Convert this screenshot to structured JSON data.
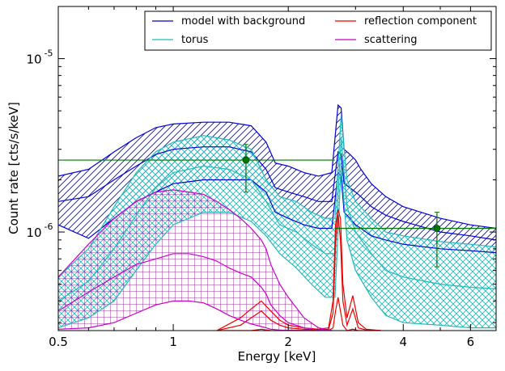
{
  "chart_data": {
    "type": "line",
    "xlabel": "Energy [keV]",
    "ylabel": "Count rate [cts/s/keV]",
    "xscale": "log",
    "yscale": "log",
    "xlim": [
      0.5,
      7.0
    ],
    "ylim": [
      2.7e-07,
      2e-05
    ],
    "x_ticks": [
      {
        "value": 0.5,
        "label": "0.5"
      },
      {
        "value": 1,
        "label": "1"
      },
      {
        "value": 2,
        "label": "2"
      },
      {
        "value": 4,
        "label": "4"
      },
      {
        "value": 6,
        "label": "6"
      }
    ],
    "y_ticks": [
      {
        "value": 1e-06,
        "label": "10",
        "exp": "-6"
      },
      {
        "value": 1e-05,
        "label": "10",
        "exp": "-5"
      }
    ],
    "legend_position": "top-right",
    "series": [
      {
        "name": "model with background",
        "color": "#0000dd",
        "hatch": "diagonal",
        "x": [
          0.5,
          0.6,
          0.7,
          0.8,
          0.9,
          1.0,
          1.2,
          1.4,
          1.6,
          1.75,
          1.85,
          2.0,
          2.2,
          2.4,
          2.6,
          2.7,
          2.75,
          2.8,
          2.9,
          3.0,
          3.1,
          3.3,
          3.6,
          4.0,
          5.0,
          6.0,
          7.0
        ],
        "upper": [
          2.1e-06,
          2.3e-06,
          2.9e-06,
          3.5e-06,
          4e-06,
          4.2e-06,
          4.3e-06,
          4.3e-06,
          4.1e-06,
          3.3e-06,
          2.5e-06,
          2.4e-06,
          2.2e-06,
          2.1e-06,
          2.2e-06,
          5.4e-06,
          5.2e-06,
          3e-06,
          2.8e-06,
          2.6e-06,
          2.3e-06,
          1.9e-06,
          1.6e-06,
          1.4e-06,
          1.2e-06,
          1.1e-06,
          1.05e-06
        ],
        "model": [
          1.5e-06,
          1.6e-06,
          2e-06,
          2.4e-06,
          2.8e-06,
          3e-06,
          3.1e-06,
          3.1e-06,
          2.9e-06,
          2.3e-06,
          1.8e-06,
          1.7e-06,
          1.6e-06,
          1.5e-06,
          1.5e-06,
          2.9e-06,
          2.8e-06,
          1.9e-06,
          1.8e-06,
          1.7e-06,
          1.6e-06,
          1.4e-06,
          1.25e-06,
          1.15e-06,
          1e-06,
          9.5e-07,
          9e-07
        ],
        "lower": [
          1.1e-06,
          9.2e-07,
          1.2e-06,
          1.5e-06,
          1.7e-06,
          1.9e-06,
          2e-06,
          2e-06,
          2e-06,
          1.7e-06,
          1.3e-06,
          1.2e-06,
          1.1e-06,
          1.05e-06,
          1.05e-06,
          2.2e-06,
          2.1e-06,
          1.3e-06,
          1.2e-06,
          1.1e-06,
          1.05e-06,
          9.5e-07,
          9e-07,
          8.5e-07,
          8e-07,
          7.8e-07,
          7.6e-07
        ]
      },
      {
        "name": "torus",
        "color": "#22bbbb",
        "hatch": "cross",
        "x": [
          0.5,
          0.6,
          0.7,
          0.8,
          0.9,
          1.0,
          1.2,
          1.4,
          1.6,
          1.75,
          1.9,
          2.1,
          2.3,
          2.5,
          2.65,
          2.75,
          2.85,
          3.0,
          3.3,
          3.6,
          4.0,
          5.0,
          6.0,
          7.0
        ],
        "upper": [
          5.5e-07,
          8e-07,
          1.4e-06,
          2.2e-06,
          2.9e-06,
          3.3e-06,
          3.6e-06,
          3.4e-06,
          3e-06,
          2e-06,
          1.6e-06,
          1.5e-06,
          1.3e-06,
          1.2e-06,
          1.2e-06,
          4.7e-06,
          2e-06,
          1.5e-06,
          1.2e-06,
          1e-06,
          9.5e-07,
          8.8e-07,
          8.5e-07,
          8.2e-07
        ],
        "model": [
          4e-07,
          5.2e-07,
          8e-07,
          1.25e-06,
          1.8e-06,
          2.2e-06,
          2.4e-06,
          2.3e-06,
          2e-06,
          1.5e-06,
          1.1e-06,
          1e-06,
          8.5e-07,
          7.5e-07,
          7.5e-07,
          3.5e-06,
          1.4e-06,
          1e-06,
          7.5e-07,
          6e-07,
          5.5e-07,
          5e-07,
          4.8e-07,
          4.7e-07
        ],
        "lower": [
          2.8e-07,
          3.2e-07,
          4e-07,
          6e-07,
          8.5e-07,
          1.1e-06,
          1.3e-06,
          1.3e-06,
          1.15e-06,
          9.5e-07,
          7.5e-07,
          6.2e-07,
          5e-07,
          4.2e-07,
          4.2e-07,
          2.4e-06,
          9e-07,
          6e-07,
          4.2e-07,
          3.3e-07,
          3e-07,
          2.9e-07,
          2.8e-07,
          2.8e-07
        ]
      },
      {
        "name": "reflection component",
        "color": "#ee0000",
        "hatch": "none",
        "x": [
          1.3,
          1.5,
          1.6,
          1.7,
          1.8,
          1.9,
          2.0,
          2.2,
          2.4,
          2.55,
          2.62,
          2.66,
          2.7,
          2.74,
          2.78,
          2.85,
          2.95,
          3.05,
          3.2,
          3.5
        ],
        "upper": [
          2.7e-07,
          3.2e-07,
          3.6e-07,
          4e-07,
          3.5e-07,
          3.1e-07,
          2.9e-07,
          2.8e-07,
          2.75e-07,
          2.8e-07,
          4e-07,
          1.1e-06,
          1.35e-06,
          1.2e-06,
          5e-07,
          3.2e-07,
          4.3e-07,
          3e-07,
          2.75e-07,
          2.7e-07
        ],
        "model": [
          2.7e-07,
          2.9e-07,
          3.2e-07,
          3.5e-07,
          3.1e-07,
          2.9e-07,
          2.8e-07,
          2.75e-07,
          2.72e-07,
          2.75e-07,
          3.4e-07,
          8.5e-07,
          1.25e-06,
          9e-07,
          4e-07,
          2.9e-07,
          3.6e-07,
          2.8e-07,
          2.72e-07,
          2.7e-07
        ],
        "lower": [
          2.7e-07,
          2.7e-07,
          2.7e-07,
          2.75e-07,
          2.7e-07,
          2.7e-07,
          2.7e-07,
          2.7e-07,
          2.7e-07,
          2.7e-07,
          2.8e-07,
          3.5e-07,
          4.2e-07,
          3.5e-07,
          2.9e-07,
          2.7e-07,
          2.75e-07,
          2.7e-07,
          2.7e-07,
          2.7e-07
        ]
      },
      {
        "name": "scattering",
        "color": "#cc00cc",
        "hatch": "grid",
        "x": [
          0.5,
          0.6,
          0.7,
          0.8,
          0.9,
          1.0,
          1.1,
          1.2,
          1.3,
          1.4,
          1.5,
          1.6,
          1.7,
          1.75,
          1.8,
          1.9,
          2.0,
          2.2,
          2.4,
          2.6
        ],
        "upper": [
          5.5e-07,
          8.5e-07,
          1.2e-06,
          1.5e-06,
          1.7e-06,
          1.75e-06,
          1.7e-06,
          1.65e-06,
          1.5e-06,
          1.35e-06,
          1.2e-06,
          1.05e-06,
          9e-07,
          8e-07,
          6.5e-07,
          5e-07,
          4.2e-07,
          3.2e-07,
          2.8e-07,
          2.7e-07
        ],
        "model": [
          3.5e-07,
          4.5e-07,
          5.5e-07,
          6.5e-07,
          7e-07,
          7.5e-07,
          7.5e-07,
          7.2e-07,
          6.8e-07,
          6.2e-07,
          5.8e-07,
          5.5e-07,
          4.8e-07,
          4.4e-07,
          3.8e-07,
          3.3e-07,
          3e-07,
          2.8e-07,
          2.72e-07,
          2.7e-07
        ],
        "lower": [
          2.75e-07,
          2.8e-07,
          3e-07,
          3.4e-07,
          3.8e-07,
          4e-07,
          4e-07,
          3.9e-07,
          3.6e-07,
          3.3e-07,
          3.1e-07,
          2.95e-07,
          2.85e-07,
          2.8e-07,
          2.75e-07,
          2.72e-07,
          2.7e-07,
          2.7e-07,
          2.7e-07,
          2.7e-07
        ]
      }
    ],
    "data_points": {
      "color": "#007700",
      "points": [
        {
          "x": 1.55,
          "y": 2.6e-06,
          "xerr": [
            0.5,
            2.65
          ],
          "yerr": [
            1.7e-06,
            3.2e-06
          ]
        },
        {
          "x": 4.9,
          "y": 1.05e-06,
          "xerr": [
            2.65,
            7.0
          ],
          "yerr": [
            6.3e-07,
            1.3e-06
          ]
        }
      ]
    }
  }
}
